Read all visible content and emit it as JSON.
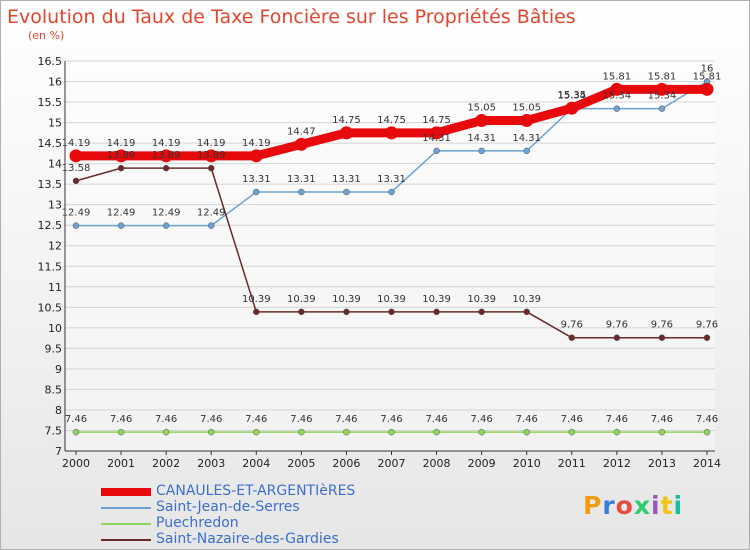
{
  "title": "Evolution du Taux de Taxe Foncière sur les Propriétés Bâties",
  "unit": "(en %)",
  "logo": {
    "text": "Proxiti",
    "colors": [
      "#f39c12",
      "#3a7fd5",
      "#e74c3c",
      "#2ecc71",
      "#9b59b6",
      "#f1c40f",
      "#1abc9c"
    ]
  },
  "chart_data": {
    "type": "line",
    "title": "Evolution du Taux de Taxe Foncière sur les Propriétés Bâties",
    "ylabel": "(en %)",
    "xlabel": "",
    "ylim": [
      7,
      16.5
    ],
    "yticks": [
      7,
      7.5,
      8,
      8.5,
      9,
      9.5,
      10,
      10.5,
      11,
      11.5,
      12,
      12.5,
      13,
      13.5,
      14,
      14.5,
      15,
      15.5,
      16,
      16.5
    ],
    "grid": "y",
    "legend_position": "bottom-left",
    "x": [
      "2000",
      "2001",
      "2002",
      "2003",
      "2004",
      "2005",
      "2006",
      "2007",
      "2008",
      "2009",
      "2010",
      "2011",
      "2012",
      "2013",
      "2014"
    ],
    "series": [
      {
        "name": "CANAULES-ET-ARGENTIèRES",
        "color": "#e8090d",
        "width": 9,
        "values": [
          14.19,
          14.19,
          14.19,
          14.19,
          14.19,
          14.47,
          14.75,
          14.75,
          14.75,
          15.05,
          15.05,
          15.35,
          15.81,
          15.81,
          15.81
        ],
        "labels": [
          "14.19",
          "14.19",
          "14.19",
          "14.19",
          "14.19",
          "14.47",
          "14.75",
          "14.75",
          "14.75",
          "15.05",
          "15.05",
          "15.35",
          "15.81",
          "15.81",
          "15.81"
        ]
      },
      {
        "name": "Saint-Jean-de-Serres",
        "color": "#6ca3d4",
        "width": 1.5,
        "values": [
          12.49,
          12.49,
          12.49,
          12.49,
          13.31,
          13.31,
          13.31,
          13.31,
          14.31,
          14.31,
          14.31,
          15.34,
          15.34,
          15.34,
          16
        ],
        "labels": [
          "12.49",
          "12.49",
          "12.49",
          "12.49",
          "13.31",
          "13.31",
          "13.31",
          "13.31",
          "14.31",
          "14.31",
          "14.31",
          "15.34",
          "15.34",
          "15.34",
          "16"
        ]
      },
      {
        "name": "Puechredon",
        "color": "#8fd65a",
        "width": 1.5,
        "values": [
          7.46,
          7.46,
          7.46,
          7.46,
          7.46,
          7.46,
          7.46,
          7.46,
          7.46,
          7.46,
          7.46,
          7.46,
          7.46,
          7.46,
          7.46
        ],
        "labels": [
          "7.46",
          "7.46",
          "7.46",
          "7.46",
          "7.46",
          "7.46",
          "7.46",
          "7.46",
          "7.46",
          "7.46",
          "7.46",
          "7.46",
          "7.46",
          "7.46",
          "7.46"
        ]
      },
      {
        "name": "Saint-Nazaire-des-Gardies",
        "color": "#6b2a2a",
        "width": 1.5,
        "values": [
          13.58,
          13.89,
          13.89,
          13.89,
          10.39,
          10.39,
          10.39,
          10.39,
          10.39,
          10.39,
          10.39,
          9.76,
          9.76,
          9.76,
          9.76
        ],
        "labels": [
          "13.58",
          "13.89",
          "13.89",
          "13.89",
          "10.39",
          "10.39",
          "10.39",
          "10.39",
          "10.39",
          "10.39",
          "10.39",
          "9.76",
          "9.76",
          "9.76",
          "9.76"
        ]
      }
    ]
  }
}
